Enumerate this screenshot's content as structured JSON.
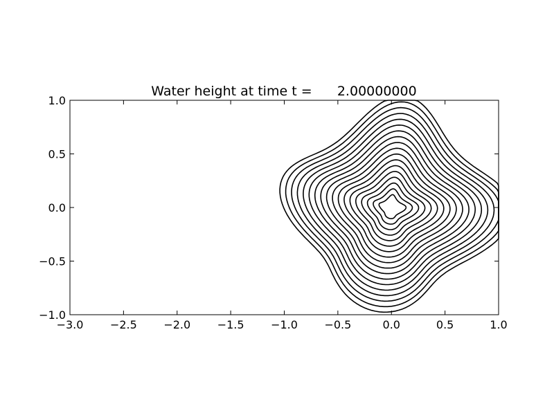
{
  "chart_data": {
    "type": "contour",
    "title": "Water height at time t =      2.00000000",
    "xlabel": "",
    "ylabel": "",
    "xlim": [
      -3.0,
      1.0
    ],
    "ylim": [
      -1.0,
      1.0
    ],
    "x_ticks": [
      -3.0,
      -2.5,
      -2.0,
      -1.5,
      -1.0,
      -0.5,
      0.0,
      0.5,
      1.0
    ],
    "x_tick_labels": [
      "−3.0",
      "−2.5",
      "−2.0",
      "−1.5",
      "−1.0",
      "−0.5",
      "0.0",
      "0.5",
      "1.0"
    ],
    "y_ticks": [
      -1.0,
      -0.5,
      0.0,
      0.5,
      1.0
    ],
    "y_tick_labels": [
      "−1.0",
      "−0.5",
      "0.0",
      "0.5",
      "1.0"
    ],
    "grid": false,
    "line_color": "#000000",
    "contours": {
      "center": [
        0.0,
        0.0
      ],
      "count": 18,
      "innermost_radius": 0.1,
      "outermost_radius": 0.93
    }
  }
}
